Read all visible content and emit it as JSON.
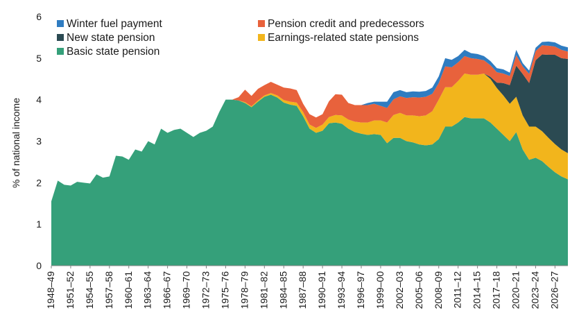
{
  "chart_data": {
    "type": "area",
    "stacked": true,
    "title": "",
    "xlabel": "",
    "ylabel": "% of national income",
    "ylim": [
      0,
      6
    ],
    "yticks": [
      0,
      1,
      2,
      3,
      4,
      5,
      6
    ],
    "grid": false,
    "legend_position": "top-left",
    "x_start_year": 1948,
    "x_end_year": 2028,
    "x_tick_labels": [
      "1948–49",
      "1951–52",
      "1954–55",
      "1957–58",
      "1960–61",
      "1963–64",
      "1966–67",
      "1969–70",
      "1972–73",
      "1975–76",
      "1978–79",
      "1981–82",
      "1984–85",
      "1987–88",
      "1990–91",
      "1993–94",
      "1996–97",
      "1999–00",
      "2002–03",
      "2005–06",
      "2008–09",
      "2011–12",
      "2014–15",
      "2017–18",
      "2020–21",
      "2023–24",
      "2026–27"
    ],
    "x_tick_years": [
      1948,
      1951,
      1954,
      1957,
      1960,
      1963,
      1966,
      1969,
      1972,
      1975,
      1978,
      1981,
      1984,
      1987,
      1990,
      1993,
      1996,
      1999,
      2002,
      2005,
      2008,
      2011,
      2014,
      2017,
      2020,
      2023,
      2026
    ],
    "series": [
      {
        "name": "Basic state pension",
        "color": "#35a07a",
        "points": [
          [
            1948,
            1.55
          ],
          [
            1949,
            2.05
          ],
          [
            1950,
            1.95
          ],
          [
            1951,
            1.93
          ],
          [
            1952,
            2.02
          ],
          [
            1953,
            2.0
          ],
          [
            1954,
            1.98
          ],
          [
            1955,
            2.2
          ],
          [
            1956,
            2.12
          ],
          [
            1957,
            2.15
          ],
          [
            1958,
            2.65
          ],
          [
            1959,
            2.63
          ],
          [
            1960,
            2.55
          ],
          [
            1961,
            2.8
          ],
          [
            1962,
            2.75
          ],
          [
            1963,
            3.0
          ],
          [
            1964,
            2.92
          ],
          [
            1965,
            3.3
          ],
          [
            1966,
            3.2
          ],
          [
            1967,
            3.27
          ],
          [
            1968,
            3.3
          ],
          [
            1969,
            3.2
          ],
          [
            1970,
            3.1
          ],
          [
            1971,
            3.2
          ],
          [
            1972,
            3.25
          ],
          [
            1973,
            3.35
          ],
          [
            1974,
            3.7
          ],
          [
            1975,
            4.0
          ],
          [
            1976,
            4.0
          ],
          [
            1977,
            3.98
          ],
          [
            1978,
            3.92
          ],
          [
            1979,
            3.82
          ],
          [
            1980,
            3.95
          ],
          [
            1981,
            4.07
          ],
          [
            1982,
            4.12
          ],
          [
            1983,
            4.05
          ],
          [
            1984,
            3.93
          ],
          [
            1985,
            3.88
          ],
          [
            1986,
            3.85
          ],
          [
            1987,
            3.6
          ],
          [
            1988,
            3.3
          ],
          [
            1989,
            3.2
          ],
          [
            1990,
            3.25
          ],
          [
            1991,
            3.43
          ],
          [
            1992,
            3.45
          ],
          [
            1993,
            3.42
          ],
          [
            1994,
            3.3
          ],
          [
            1995,
            3.22
          ],
          [
            1996,
            3.18
          ],
          [
            1997,
            3.15
          ],
          [
            1998,
            3.17
          ],
          [
            1999,
            3.15
          ],
          [
            2000,
            2.95
          ],
          [
            2001,
            3.08
          ],
          [
            2002,
            3.08
          ],
          [
            2003,
            3.0
          ],
          [
            2004,
            2.97
          ],
          [
            2005,
            2.92
          ],
          [
            2006,
            2.9
          ],
          [
            2007,
            2.92
          ],
          [
            2008,
            3.05
          ],
          [
            2009,
            3.35
          ],
          [
            2010,
            3.35
          ],
          [
            2011,
            3.45
          ],
          [
            2012,
            3.58
          ],
          [
            2013,
            3.55
          ],
          [
            2014,
            3.55
          ],
          [
            2015,
            3.55
          ],
          [
            2016,
            3.45
          ],
          [
            2017,
            3.3
          ],
          [
            2018,
            3.15
          ],
          [
            2019,
            3.0
          ],
          [
            2020,
            3.22
          ],
          [
            2021,
            2.8
          ],
          [
            2022,
            2.55
          ],
          [
            2023,
            2.6
          ],
          [
            2024,
            2.52
          ],
          [
            2025,
            2.38
          ],
          [
            2026,
            2.25
          ],
          [
            2027,
            2.15
          ],
          [
            2028,
            2.08
          ]
        ]
      },
      {
        "name": "Earnings-related state pensions",
        "color": "#f2b51c",
        "points": [
          [
            1948,
            0
          ],
          [
            1977,
            0
          ],
          [
            1978,
            0.02
          ],
          [
            1979,
            0.02
          ],
          [
            1980,
            0.03
          ],
          [
            1981,
            0.03
          ],
          [
            1982,
            0.04
          ],
          [
            1983,
            0.05
          ],
          [
            1984,
            0.06
          ],
          [
            1985,
            0.07
          ],
          [
            1986,
            0.08
          ],
          [
            1987,
            0.1
          ],
          [
            1988,
            0.1
          ],
          [
            1989,
            0.12
          ],
          [
            1990,
            0.15
          ],
          [
            1991,
            0.15
          ],
          [
            1992,
            0.18
          ],
          [
            1993,
            0.2
          ],
          [
            1994,
            0.22
          ],
          [
            1995,
            0.25
          ],
          [
            1996,
            0.27
          ],
          [
            1997,
            0.3
          ],
          [
            1998,
            0.33
          ],
          [
            1999,
            0.35
          ],
          [
            2000,
            0.5
          ],
          [
            2001,
            0.55
          ],
          [
            2002,
            0.6
          ],
          [
            2003,
            0.62
          ],
          [
            2004,
            0.65
          ],
          [
            2005,
            0.68
          ],
          [
            2006,
            0.72
          ],
          [
            2007,
            0.8
          ],
          [
            2008,
            0.95
          ],
          [
            2009,
            0.95
          ],
          [
            2010,
            0.95
          ],
          [
            2011,
            1.0
          ],
          [
            2012,
            1.05
          ],
          [
            2013,
            1.05
          ],
          [
            2014,
            1.05
          ],
          [
            2015,
            1.08
          ],
          [
            2016,
            1.05
          ],
          [
            2017,
            0.98
          ],
          [
            2018,
            0.95
          ],
          [
            2019,
            0.9
          ],
          [
            2020,
            0.85
          ],
          [
            2021,
            0.82
          ],
          [
            2022,
            0.8
          ],
          [
            2023,
            0.75
          ],
          [
            2024,
            0.72
          ],
          [
            2025,
            0.7
          ],
          [
            2026,
            0.68
          ],
          [
            2027,
            0.65
          ],
          [
            2028,
            0.63
          ]
        ]
      },
      {
        "name": "New state pension",
        "color": "#2b4a52",
        "points": [
          [
            1948,
            0
          ],
          [
            2015,
            0
          ],
          [
            2016,
            0.05
          ],
          [
            2017,
            0.13
          ],
          [
            2018,
            0.3
          ],
          [
            2019,
            0.45
          ],
          [
            2020,
            0.75
          ],
          [
            2021,
            1.0
          ],
          [
            2022,
            1.05
          ],
          [
            2023,
            1.6
          ],
          [
            2024,
            1.85
          ],
          [
            2025,
            2.0
          ],
          [
            2026,
            2.15
          ],
          [
            2027,
            2.2
          ],
          [
            2028,
            2.27
          ]
        ]
      },
      {
        "name": "Pension credit and predecessors",
        "color": "#e8623c",
        "points": [
          [
            1948,
            0
          ],
          [
            1976,
            0
          ],
          [
            1977,
            0.08
          ],
          [
            1978,
            0.3
          ],
          [
            1979,
            0.25
          ],
          [
            1980,
            0.28
          ],
          [
            1981,
            0.25
          ],
          [
            1982,
            0.27
          ],
          [
            1983,
            0.26
          ],
          [
            1984,
            0.3
          ],
          [
            1985,
            0.32
          ],
          [
            1986,
            0.3
          ],
          [
            1987,
            0.2
          ],
          [
            1988,
            0.25
          ],
          [
            1989,
            0.25
          ],
          [
            1990,
            0.25
          ],
          [
            1991,
            0.38
          ],
          [
            1992,
            0.5
          ],
          [
            1993,
            0.5
          ],
          [
            1994,
            0.4
          ],
          [
            1995,
            0.4
          ],
          [
            1996,
            0.42
          ],
          [
            1997,
            0.42
          ],
          [
            1998,
            0.4
          ],
          [
            1999,
            0.35
          ],
          [
            2000,
            0.35
          ],
          [
            2001,
            0.38
          ],
          [
            2002,
            0.4
          ],
          [
            2003,
            0.42
          ],
          [
            2004,
            0.44
          ],
          [
            2005,
            0.45
          ],
          [
            2006,
            0.45
          ],
          [
            2007,
            0.42
          ],
          [
            2008,
            0.4
          ],
          [
            2009,
            0.5
          ],
          [
            2010,
            0.48
          ],
          [
            2011,
            0.45
          ],
          [
            2012,
            0.42
          ],
          [
            2013,
            0.4
          ],
          [
            2014,
            0.38
          ],
          [
            2015,
            0.32
          ],
          [
            2016,
            0.28
          ],
          [
            2017,
            0.25
          ],
          [
            2018,
            0.23
          ],
          [
            2019,
            0.22
          ],
          [
            2020,
            0.25
          ],
          [
            2021,
            0.18
          ],
          [
            2022,
            0.22
          ],
          [
            2023,
            0.22
          ],
          [
            2024,
            0.22
          ],
          [
            2025,
            0.22
          ],
          [
            2026,
            0.2
          ],
          [
            2027,
            0.2
          ],
          [
            2028,
            0.18
          ]
        ]
      },
      {
        "name": "Winter fuel payment",
        "color": "#2f7cc1",
        "points": [
          [
            1948,
            0
          ],
          [
            1996,
            0
          ],
          [
            1997,
            0.05
          ],
          [
            1998,
            0.05
          ],
          [
            1999,
            0.1
          ],
          [
            2000,
            0.15
          ],
          [
            2001,
            0.17
          ],
          [
            2002,
            0.15
          ],
          [
            2003,
            0.14
          ],
          [
            2004,
            0.14
          ],
          [
            2005,
            0.14
          ],
          [
            2006,
            0.14
          ],
          [
            2007,
            0.15
          ],
          [
            2008,
            0.16
          ],
          [
            2009,
            0.2
          ],
          [
            2010,
            0.18
          ],
          [
            2011,
            0.15
          ],
          [
            2012,
            0.15
          ],
          [
            2013,
            0.12
          ],
          [
            2014,
            0.12
          ],
          [
            2015,
            0.1
          ],
          [
            2016,
            0.1
          ],
          [
            2017,
            0.1
          ],
          [
            2018,
            0.1
          ],
          [
            2019,
            0.08
          ],
          [
            2020,
            0.13
          ],
          [
            2021,
            0.08
          ],
          [
            2022,
            0.08
          ],
          [
            2023,
            0.08
          ],
          [
            2024,
            0.08
          ],
          [
            2025,
            0.1
          ],
          [
            2026,
            0.1
          ],
          [
            2027,
            0.1
          ],
          [
            2028,
            0.1
          ]
        ]
      }
    ],
    "legend_items": [
      {
        "label": "Winter fuel payment",
        "color": "#2f7cc1"
      },
      {
        "label": "Pension credit and predecessors",
        "color": "#e8623c"
      },
      {
        "label": "New state pension",
        "color": "#2b4a52"
      },
      {
        "label": "Earnings-related state pensions",
        "color": "#f2b51c"
      },
      {
        "label": "Basic state pension",
        "color": "#35a07a"
      }
    ]
  }
}
